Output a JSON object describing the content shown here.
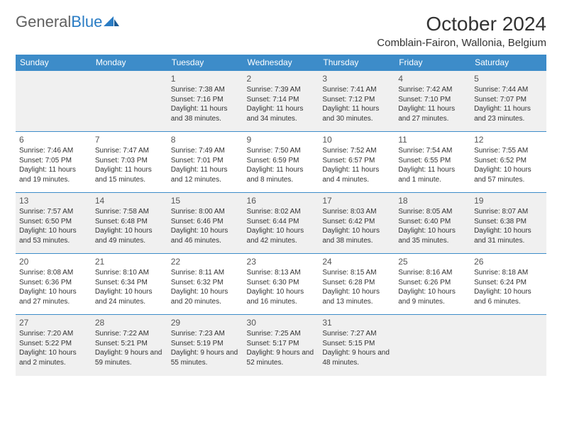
{
  "header": {
    "logo_general": "General",
    "logo_blue": "Blue",
    "title": "October 2024",
    "location": "Comblain-Fairon, Wallonia, Belgium"
  },
  "colors": {
    "header_bg": "#3d8cc9",
    "header_text": "#ffffff",
    "border": "#3d8cc9",
    "shaded": "#f0f0f0",
    "logo_gray": "#606060",
    "logo_blue": "#2a7cc4"
  },
  "day_names": [
    "Sunday",
    "Monday",
    "Tuesday",
    "Wednesday",
    "Thursday",
    "Friday",
    "Saturday"
  ],
  "weeks": [
    [
      null,
      null,
      {
        "n": "1",
        "sr": "7:38 AM",
        "ss": "7:16 PM",
        "dl": "11 hours and 38 minutes."
      },
      {
        "n": "2",
        "sr": "7:39 AM",
        "ss": "7:14 PM",
        "dl": "11 hours and 34 minutes."
      },
      {
        "n": "3",
        "sr": "7:41 AM",
        "ss": "7:12 PM",
        "dl": "11 hours and 30 minutes."
      },
      {
        "n": "4",
        "sr": "7:42 AM",
        "ss": "7:10 PM",
        "dl": "11 hours and 27 minutes."
      },
      {
        "n": "5",
        "sr": "7:44 AM",
        "ss": "7:07 PM",
        "dl": "11 hours and 23 minutes."
      }
    ],
    [
      {
        "n": "6",
        "sr": "7:46 AM",
        "ss": "7:05 PM",
        "dl": "11 hours and 19 minutes."
      },
      {
        "n": "7",
        "sr": "7:47 AM",
        "ss": "7:03 PM",
        "dl": "11 hours and 15 minutes."
      },
      {
        "n": "8",
        "sr": "7:49 AM",
        "ss": "7:01 PM",
        "dl": "11 hours and 12 minutes."
      },
      {
        "n": "9",
        "sr": "7:50 AM",
        "ss": "6:59 PM",
        "dl": "11 hours and 8 minutes."
      },
      {
        "n": "10",
        "sr": "7:52 AM",
        "ss": "6:57 PM",
        "dl": "11 hours and 4 minutes."
      },
      {
        "n": "11",
        "sr": "7:54 AM",
        "ss": "6:55 PM",
        "dl": "11 hours and 1 minute."
      },
      {
        "n": "12",
        "sr": "7:55 AM",
        "ss": "6:52 PM",
        "dl": "10 hours and 57 minutes."
      }
    ],
    [
      {
        "n": "13",
        "sr": "7:57 AM",
        "ss": "6:50 PM",
        "dl": "10 hours and 53 minutes."
      },
      {
        "n": "14",
        "sr": "7:58 AM",
        "ss": "6:48 PM",
        "dl": "10 hours and 49 minutes."
      },
      {
        "n": "15",
        "sr": "8:00 AM",
        "ss": "6:46 PM",
        "dl": "10 hours and 46 minutes."
      },
      {
        "n": "16",
        "sr": "8:02 AM",
        "ss": "6:44 PM",
        "dl": "10 hours and 42 minutes."
      },
      {
        "n": "17",
        "sr": "8:03 AM",
        "ss": "6:42 PM",
        "dl": "10 hours and 38 minutes."
      },
      {
        "n": "18",
        "sr": "8:05 AM",
        "ss": "6:40 PM",
        "dl": "10 hours and 35 minutes."
      },
      {
        "n": "19",
        "sr": "8:07 AM",
        "ss": "6:38 PM",
        "dl": "10 hours and 31 minutes."
      }
    ],
    [
      {
        "n": "20",
        "sr": "8:08 AM",
        "ss": "6:36 PM",
        "dl": "10 hours and 27 minutes."
      },
      {
        "n": "21",
        "sr": "8:10 AM",
        "ss": "6:34 PM",
        "dl": "10 hours and 24 minutes."
      },
      {
        "n": "22",
        "sr": "8:11 AM",
        "ss": "6:32 PM",
        "dl": "10 hours and 20 minutes."
      },
      {
        "n": "23",
        "sr": "8:13 AM",
        "ss": "6:30 PM",
        "dl": "10 hours and 16 minutes."
      },
      {
        "n": "24",
        "sr": "8:15 AM",
        "ss": "6:28 PM",
        "dl": "10 hours and 13 minutes."
      },
      {
        "n": "25",
        "sr": "8:16 AM",
        "ss": "6:26 PM",
        "dl": "10 hours and 9 minutes."
      },
      {
        "n": "26",
        "sr": "8:18 AM",
        "ss": "6:24 PM",
        "dl": "10 hours and 6 minutes."
      }
    ],
    [
      {
        "n": "27",
        "sr": "7:20 AM",
        "ss": "5:22 PM",
        "dl": "10 hours and 2 minutes."
      },
      {
        "n": "28",
        "sr": "7:22 AM",
        "ss": "5:21 PM",
        "dl": "9 hours and 59 minutes."
      },
      {
        "n": "29",
        "sr": "7:23 AM",
        "ss": "5:19 PM",
        "dl": "9 hours and 55 minutes."
      },
      {
        "n": "30",
        "sr": "7:25 AM",
        "ss": "5:17 PM",
        "dl": "9 hours and 52 minutes."
      },
      {
        "n": "31",
        "sr": "7:27 AM",
        "ss": "5:15 PM",
        "dl": "9 hours and 48 minutes."
      },
      null,
      null
    ]
  ],
  "labels": {
    "sunrise": "Sunrise: ",
    "sunset": "Sunset: ",
    "daylight": "Daylight: "
  }
}
